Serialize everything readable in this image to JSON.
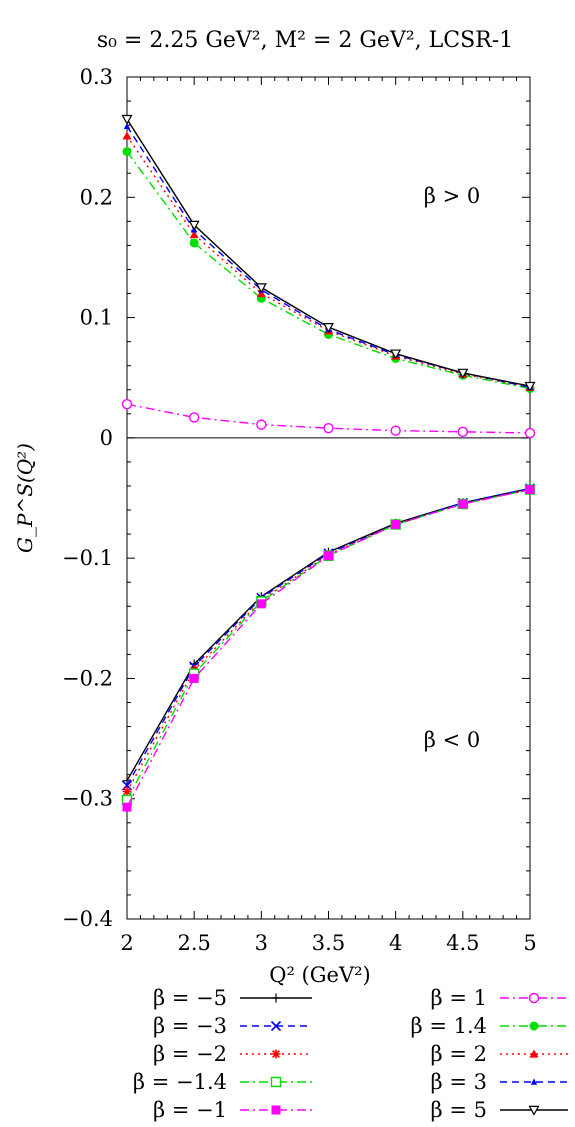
{
  "chart_data": {
    "type": "line",
    "title": "s₀ = 2.25 GeV², M² = 2 GeV², LCSR-1",
    "xlabel": "Q² (GeV²)",
    "ylabel": "G_P^S(Q²)",
    "xlim": [
      2,
      5
    ],
    "ylim": [
      -0.4,
      0.3
    ],
    "x_ticks": [
      "2",
      "2.5",
      "3",
      "3.5",
      "4",
      "4.5",
      "5"
    ],
    "y_ticks": [
      "−0.4",
      "−0.3",
      "−0.2",
      "−0.1",
      "0",
      "0.1",
      "0.2",
      "0.3"
    ],
    "annotations": [
      "β > 0",
      "β < 0"
    ],
    "x": [
      2,
      2.5,
      3,
      3.5,
      4,
      4.5,
      5
    ],
    "series": [
      {
        "name": "β = −5",
        "color": "#000000",
        "dash": "solid",
        "marker": "plus",
        "values": [
          -0.285,
          -0.188,
          -0.132,
          -0.095,
          -0.071,
          -0.054,
          -0.042
        ]
      },
      {
        "name": "β = −3",
        "color": "#0000ff",
        "dash": "dash",
        "marker": "cross",
        "values": [
          -0.289,
          -0.19,
          -0.133,
          -0.096,
          -0.072,
          -0.054,
          -0.042
        ]
      },
      {
        "name": "β = −2",
        "color": "#ff0000",
        "dash": "dot",
        "marker": "star",
        "values": [
          -0.294,
          -0.193,
          -0.135,
          -0.097,
          -0.072,
          -0.055,
          -0.043
        ]
      },
      {
        "name": "β = −1.4",
        "color": "#00dd00",
        "dash": "dashdot",
        "marker": "square-open",
        "values": [
          -0.301,
          -0.196,
          -0.136,
          -0.098,
          -0.072,
          -0.055,
          -0.043
        ]
      },
      {
        "name": "β = −1",
        "color": "#ff00ff",
        "dash": "dashdot",
        "marker": "square-filled",
        "values": [
          -0.307,
          -0.2,
          -0.138,
          -0.098,
          -0.072,
          -0.055,
          -0.043
        ]
      },
      {
        "name": "β = 1",
        "color": "#ff00ff",
        "dash": "dashdot",
        "marker": "circle-open",
        "values": [
          0.028,
          0.017,
          0.011,
          0.008,
          0.006,
          0.005,
          0.004
        ]
      },
      {
        "name": "β = 1.4",
        "color": "#00dd00",
        "dash": "dashdot",
        "marker": "circle-filled",
        "values": [
          0.238,
          0.162,
          0.116,
          0.086,
          0.066,
          0.052,
          0.041
        ]
      },
      {
        "name": "β = 2",
        "color": "#ff0000",
        "dash": "dot",
        "marker": "triangle-filled",
        "values": [
          0.251,
          0.169,
          0.12,
          0.089,
          0.068,
          0.053,
          0.042
        ]
      },
      {
        "name": "β = 3",
        "color": "#0000ff",
        "dash": "dash",
        "marker": "triangle-small",
        "values": [
          0.259,
          0.173,
          0.123,
          0.09,
          0.069,
          0.054,
          0.042
        ]
      },
      {
        "name": "β = 5",
        "color": "#000000",
        "dash": "solid",
        "marker": "triangle-down",
        "values": [
          0.265,
          0.177,
          0.125,
          0.092,
          0.07,
          0.054,
          0.043
        ]
      }
    ],
    "grid": false,
    "legend_position": "bottom"
  }
}
